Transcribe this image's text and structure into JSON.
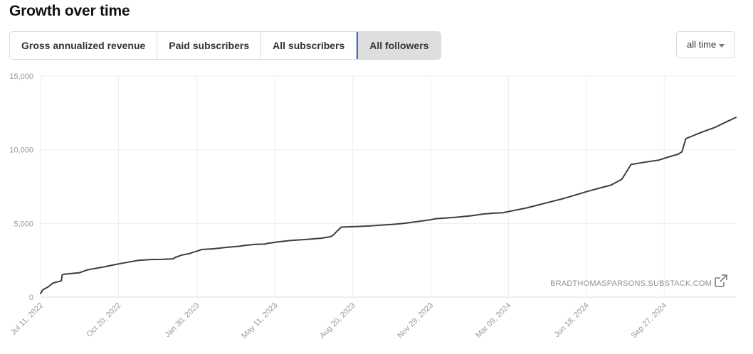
{
  "header": {
    "title": "Growth over time"
  },
  "tabs": [
    {
      "label": "Gross annualized revenue",
      "active": false
    },
    {
      "label": "Paid subscribers",
      "active": false
    },
    {
      "label": "All subscribers",
      "active": false
    },
    {
      "label": "All followers",
      "active": true
    }
  ],
  "range_select": {
    "value": "all time"
  },
  "watermark": "BRADTHOMASPARSONS.SUBSTACK.COM",
  "colors": {
    "line": "#3d3d3d",
    "grid": "#eeeeee",
    "active_tab_bg": "#dedede",
    "active_tab_border": "#3b6fe0"
  },
  "icons": {
    "external_link": "external-link-icon",
    "dropdown": "caret-down-icon"
  },
  "chart_data": {
    "type": "line",
    "title": "",
    "xlabel": "",
    "ylabel": "",
    "ylim": [
      0,
      15000
    ],
    "xlim": [
      "2022-07-11",
      "2024-12-29"
    ],
    "yticks": [
      0,
      5000,
      10000,
      15000
    ],
    "ytick_labels": [
      "0",
      "5,000",
      "10,000",
      "15,000"
    ],
    "xticks": [
      "2022-07-11",
      "2022-10-20",
      "2023-01-30",
      "2023-05-11",
      "2023-08-20",
      "2023-11-29",
      "2024-03-09",
      "2024-06-18",
      "2024-09-27"
    ],
    "xtick_labels": [
      "Jul 11, 2022",
      "Oct 20, 2022",
      "Jan 30, 2023",
      "May 11, 2023",
      "Aug 20, 2023",
      "Nov 29, 2023",
      "Mar 09, 2024",
      "Jun 18, 2024",
      "Sep 27, 2024"
    ],
    "grid": true,
    "series": [
      {
        "x": [
          "2022-07-11",
          "2022-07-14",
          "2022-07-21",
          "2022-07-27",
          "2022-08-03",
          "2022-08-07",
          "2022-08-08",
          "2022-08-10",
          "2022-08-20",
          "2022-08-30",
          "2022-09-10",
          "2022-09-20",
          "2022-10-01",
          "2022-10-15",
          "2022-10-25",
          "2022-11-05",
          "2022-11-15",
          "2022-12-01",
          "2022-12-15",
          "2022-12-30",
          "2023-01-02",
          "2023-01-10",
          "2023-01-20",
          "2023-01-25",
          "2023-01-29",
          "2023-02-05",
          "2023-02-20",
          "2023-03-10",
          "2023-03-25",
          "2023-04-01",
          "2023-04-15",
          "2023-04-28",
          "2023-05-01",
          "2023-05-15",
          "2023-06-01",
          "2023-06-20",
          "2023-07-10",
          "2023-07-22",
          "2023-07-25",
          "2023-08-05",
          "2023-08-20",
          "2023-09-10",
          "2023-09-25",
          "2023-10-10",
          "2023-10-25",
          "2023-11-15",
          "2023-11-29",
          "2023-12-05",
          "2024-01-01",
          "2024-01-20",
          "2024-02-05",
          "2024-02-20",
          "2024-03-01",
          "2024-03-15",
          "2024-04-01",
          "2024-04-20",
          "2024-05-01",
          "2024-05-20",
          "2024-06-05",
          "2024-06-20",
          "2024-07-05",
          "2024-07-20",
          "2024-07-27",
          "2024-08-03",
          "2024-08-15",
          "2024-09-01",
          "2024-09-20",
          "2024-10-05",
          "2024-10-15",
          "2024-10-18",
          "2024-10-20",
          "2024-10-25",
          "2024-11-01",
          "2024-11-15",
          "2024-12-01",
          "2024-12-15",
          "2024-12-29"
        ],
        "values": [
          250,
          500,
          700,
          950,
          1050,
          1100,
          1500,
          1550,
          1600,
          1650,
          1850,
          1950,
          2050,
          2200,
          2300,
          2400,
          2500,
          2550,
          2560,
          2600,
          2700,
          2850,
          2950,
          3050,
          3100,
          3230,
          3280,
          3380,
          3450,
          3500,
          3580,
          3600,
          3640,
          3750,
          3850,
          3910,
          4000,
          4100,
          4180,
          4750,
          4780,
          4830,
          4880,
          4930,
          5000,
          5150,
          5250,
          5320,
          5420,
          5520,
          5640,
          5700,
          5720,
          5870,
          6050,
          6300,
          6450,
          6700,
          6950,
          7180,
          7400,
          7600,
          7800,
          8000,
          9000,
          9150,
          9300,
          9550,
          9700,
          9800,
          9860,
          10750,
          10900,
          11200,
          11500,
          11850,
          12200
        ]
      }
    ]
  }
}
